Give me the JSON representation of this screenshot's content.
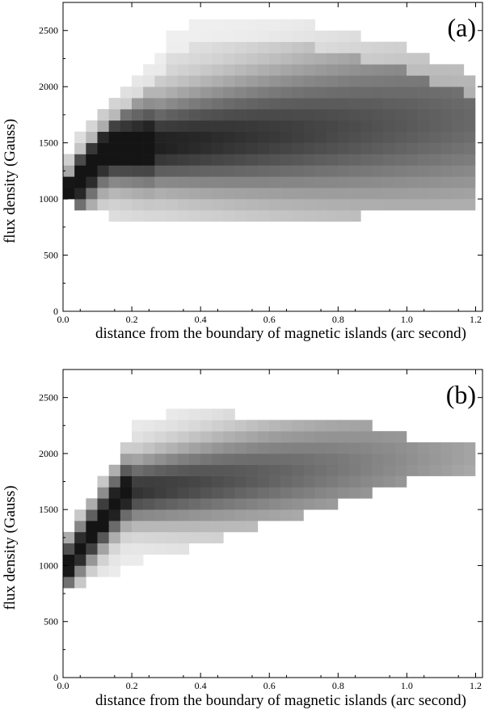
{
  "chart_data": [
    {
      "type": "heatmap",
      "panel_label": "(a)",
      "xlabel": "distance from the boundary of magnetic islands (arc second)",
      "ylabel": "flux density (Gauss)",
      "xlim": [
        0.0,
        1.22
      ],
      "ylim": [
        0,
        2750
      ],
      "xticks": [
        "0.0",
        "0.2",
        "0.4",
        "0.6",
        "0.8",
        "1.0",
        "1.2"
      ],
      "yticks": [
        "0",
        "500",
        "1000",
        "1500",
        "2000",
        "2500"
      ],
      "grid": false,
      "bin_size_x": 0.0333,
      "bin_size_y": 100,
      "cell_value_range": [
        0,
        1
      ],
      "cells_note": "x = bin center (arc second), y = bin center (Gauss), v = relative density (0 white, 1 black)"
    },
    {
      "type": "heatmap",
      "panel_label": "(b)",
      "xlabel": "distance from the boundary of magnetic islands (arc second)",
      "ylabel": "flux density (Gauss)",
      "xlim": [
        0.0,
        1.22
      ],
      "ylim": [
        0,
        2750
      ],
      "xticks": [
        "0.0",
        "0.2",
        "0.4",
        "0.6",
        "0.8",
        "1.0",
        "1.2"
      ],
      "yticks": [
        "0",
        "500",
        "1000",
        "1500",
        "2000",
        "2500"
      ],
      "grid": false,
      "bin_size_x": 0.0333,
      "bin_size_y": 100,
      "cell_value_range": [
        0,
        1
      ]
    }
  ]
}
